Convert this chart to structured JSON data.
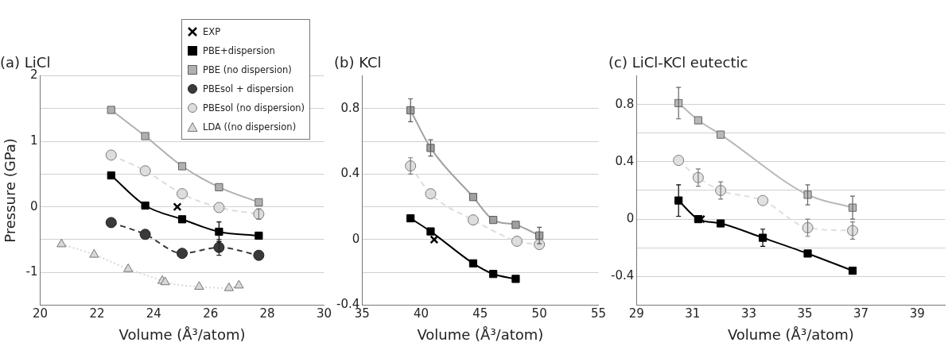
{
  "chart_data": [
    {
      "type": "line",
      "title": "(a) LiCl",
      "xlabel": "Volume (Å³/atom)",
      "ylabel": "Pressure (GPa)",
      "xlim": [
        20,
        30
      ],
      "xticks": [
        20,
        22,
        24,
        26,
        28,
        30
      ],
      "ylim": [
        -1.5,
        2
      ],
      "yticks": [
        -1,
        {
          "value": -0.5,
          "label": null
        },
        0,
        {
          "value": 0.5,
          "label": null
        },
        1,
        {
          "value": 1.5,
          "label": null
        },
        2
      ],
      "grid": "y",
      "legend": "top right",
      "series": [
        {
          "name": "EXP",
          "type": "scatter",
          "marker": "cross",
          "color": "#000000",
          "x": [
            24.83
          ],
          "values": [
            0
          ]
        },
        {
          "name": "PBE+dispersion",
          "marker": "square",
          "line_style": "solid",
          "color": "#000000",
          "x": [
            22.5,
            23.7,
            25.0,
            26.3,
            27.7
          ],
          "values": [
            0.48,
            0.02,
            -0.19,
            -0.38,
            -0.44
          ],
          "errors": [
            null,
            null,
            null,
            0.15,
            null
          ]
        },
        {
          "name": "PBE (no dispersion)",
          "marker": "square",
          "line_style": "solid",
          "color": "#b0b0b0",
          "x": [
            22.5,
            23.7,
            25.0,
            26.3,
            27.7
          ],
          "values": [
            1.48,
            1.08,
            0.62,
            0.3,
            0.07
          ]
        },
        {
          "name": "PBEsol + dispersion",
          "marker": "circle",
          "line_style": "dashed",
          "color": "#3a3a3a",
          "x": [
            22.5,
            23.7,
            25.0,
            26.3,
            27.7
          ],
          "values": [
            -0.24,
            -0.42,
            -0.71,
            -0.62,
            -0.74
          ],
          "errors": [
            null,
            null,
            null,
            0.12,
            null
          ]
        },
        {
          "name": "PBEsol (no dispersion)",
          "marker": "circle",
          "line_style": "dashed",
          "color": "#dddddd",
          "x": [
            22.5,
            23.7,
            25.0,
            26.3,
            27.7
          ],
          "values": [
            0.79,
            0.55,
            0.2,
            -0.01,
            -0.11
          ],
          "errors": [
            null,
            null,
            null,
            null,
            0.08
          ]
        },
        {
          "name": "LDA ((no dispersion)",
          "marker": "triangle",
          "line_style": "dotted",
          "color": "#d8d8d8",
          "x": [
            20.75,
            21.9,
            23.1,
            24.3,
            24.4,
            25.6,
            26.65,
            27.0
          ],
          "values": [
            -0.57,
            -0.73,
            -0.95,
            -1.13,
            -1.15,
            -1.22,
            -1.24,
            -1.2
          ]
        }
      ]
    },
    {
      "type": "line",
      "title": "(b) KCl",
      "xlabel": "Volume (Å³/atom)",
      "xlim": [
        35,
        55
      ],
      "xticks": [
        35,
        40,
        45,
        50,
        55
      ],
      "ylim": [
        -0.4,
        1.0
      ],
      "yticks": [
        -0.4,
        {
          "value": -0.2,
          "label": null
        },
        0,
        {
          "value": 0.2,
          "label": null
        },
        0.4,
        {
          "value": 0.6,
          "label": null
        },
        0.8
      ],
      "grid": "y",
      "series": [
        {
          "type": "scatter",
          "marker": "cross",
          "color": "#000000",
          "x": [
            41.1
          ],
          "values": [
            0
          ]
        },
        {
          "marker": "square",
          "line_style": "solid",
          "color": "#000000",
          "x": [
            39.1,
            40.8,
            44.4,
            46.1,
            48.0
          ],
          "values": [
            0.13,
            0.05,
            -0.145,
            -0.21,
            -0.24
          ]
        },
        {
          "marker": "square",
          "line_style": "solid",
          "color": "#a0a0a0",
          "x": [
            39.1,
            40.8,
            44.4,
            46.1,
            48.0,
            50.0
          ],
          "values": [
            0.79,
            0.56,
            0.26,
            0.12,
            0.09,
            0.025
          ],
          "errors": [
            0.07,
            0.05,
            null,
            null,
            null,
            0.05
          ]
        },
        {
          "marker": "circle",
          "line_style": "dashed",
          "color": "#dddddd",
          "x": [
            39.1,
            40.8,
            44.4,
            48.1,
            50.0
          ],
          "values": [
            0.45,
            0.28,
            0.12,
            -0.01,
            -0.03
          ],
          "errors": [
            0.05,
            null,
            null,
            null,
            null
          ]
        }
      ]
    },
    {
      "type": "line",
      "title": "(c) LiCl-KCl eutectic",
      "xlabel": "Volume (Å³/atom)",
      "xlim": [
        29,
        40
      ],
      "xticks": [
        29,
        31,
        33,
        35,
        37,
        39
      ],
      "ylim": [
        -0.6,
        1.0
      ],
      "yticks": [
        -0.4,
        {
          "value": -0.2,
          "label": null
        },
        0,
        {
          "value": 0.2,
          "label": null
        },
        0.4,
        {
          "value": 0.6,
          "label": null
        },
        0.8
      ],
      "grid": "y",
      "series": [
        {
          "type": "scatter",
          "marker": "cross",
          "color": "#000000",
          "x": [
            31.3
          ],
          "values": [
            0
          ]
        },
        {
          "marker": "square",
          "line_style": "solid",
          "color": "#000000",
          "x": [
            30.5,
            31.2,
            32.0,
            33.5,
            35.1,
            36.7
          ],
          "values": [
            0.13,
            0.0,
            -0.03,
            -0.13,
            -0.24,
            -0.36
          ],
          "errors": [
            0.11,
            null,
            null,
            0.06,
            null,
            null
          ]
        },
        {
          "marker": "square",
          "line_style": "solid",
          "color": "#b8b8b8",
          "x": [
            30.5,
            31.2,
            32.0,
            35.1,
            36.7
          ],
          "values": [
            0.81,
            0.69,
            0.59,
            0.17,
            0.08
          ],
          "errors": [
            0.11,
            null,
            null,
            0.07,
            0.08
          ]
        },
        {
          "marker": "circle",
          "line_style": "dashed",
          "color": "#e0e0e0",
          "x": [
            30.5,
            31.2,
            32.0,
            33.5,
            35.1,
            36.7
          ],
          "values": [
            0.41,
            0.29,
            0.2,
            0.13,
            -0.06,
            -0.08
          ],
          "errors": [
            null,
            0.06,
            0.06,
            null,
            0.06,
            0.06
          ]
        }
      ]
    }
  ]
}
